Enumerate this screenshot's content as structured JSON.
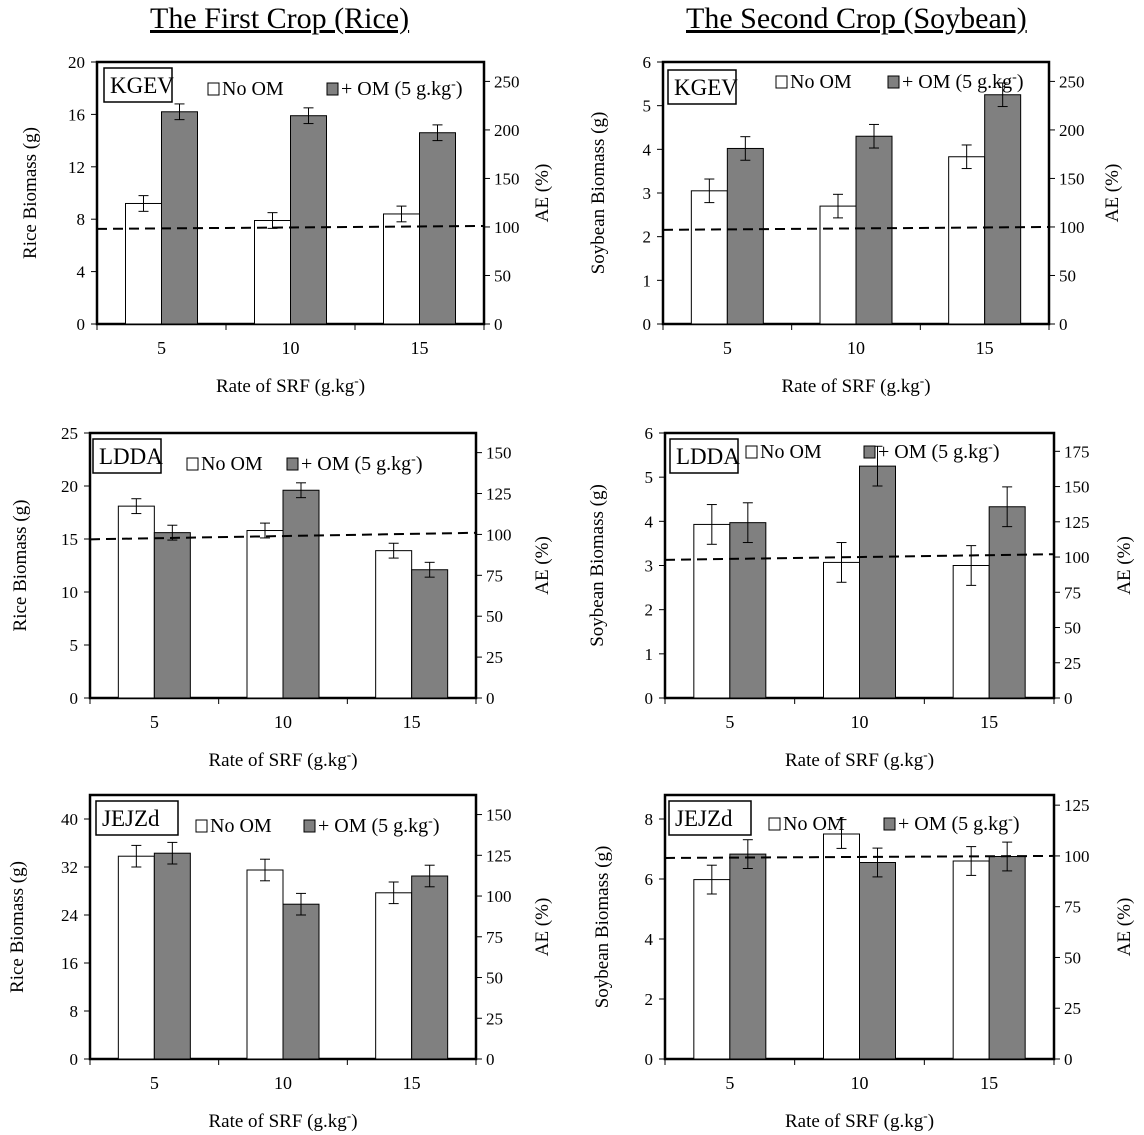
{
  "column_titles": {
    "left": "The First Crop (Rice)",
    "right": "The Second Crop (Soybean)"
  },
  "colors": {
    "no_om": "#ffffff",
    "plus_om": "#808080",
    "axis": "#000000"
  },
  "chart_data": [
    {
      "type": "bar",
      "panel": "KGEV",
      "crop": "Rice",
      "categories": [
        "5",
        "10",
        "15"
      ],
      "xlabel": "Rate of SRF (g.kg-)",
      "ylabel": "Rice Biomass (g)",
      "y2label": "AE (%)",
      "ylim": [
        0,
        20
      ],
      "yticks": [
        0,
        4,
        8,
        12,
        16,
        20
      ],
      "y2lim": [
        0,
        270
      ],
      "y2ticks": [
        0,
        50,
        100,
        150,
        200,
        250
      ],
      "legend_position": "top",
      "series": [
        {
          "name": "No OM",
          "values": [
            9.2,
            7.9,
            8.4
          ],
          "errors": [
            0.6,
            0.6,
            0.6
          ]
        },
        {
          "name": "+ OM (5 g.kg-)",
          "values": [
            16.2,
            15.9,
            14.6
          ],
          "errors": [
            0.6,
            0.6,
            0.6
          ]
        }
      ],
      "ae_line": {
        "style": "dashed",
        "start": 98,
        "end": 101
      }
    },
    {
      "type": "bar",
      "panel": "KGEV",
      "crop": "Soybean",
      "categories": [
        "5",
        "10",
        "15"
      ],
      "xlabel": "Rate of SRF (g.kg-)",
      "ylabel": "Soybean Biomass (g)",
      "y2label": "AE (%)",
      "ylim": [
        0,
        6
      ],
      "yticks": [
        0,
        1,
        2,
        3,
        4,
        5,
        6
      ],
      "y2lim": [
        0,
        270
      ],
      "y2ticks": [
        0,
        50,
        100,
        150,
        200,
        250
      ],
      "legend_position": "top",
      "series": [
        {
          "name": "No OM",
          "values": [
            3.05,
            2.7,
            3.83
          ],
          "errors": [
            0.27,
            0.27,
            0.27
          ]
        },
        {
          "name": "+ OM (5 g.kg-)",
          "values": [
            4.02,
            4.3,
            5.25
          ],
          "errors": [
            0.27,
            0.27,
            0.27
          ]
        }
      ],
      "ae_line": {
        "style": "dashed",
        "start": 97,
        "end": 100
      }
    },
    {
      "type": "bar",
      "panel": "LDDA",
      "crop": "Rice",
      "categories": [
        "5",
        "10",
        "15"
      ],
      "xlabel": "Rate of SRF (g.kg-)",
      "ylabel": "Rice Biomass (g)",
      "y2label": "AE (%)",
      "ylim": [
        0,
        25
      ],
      "yticks": [
        0,
        5,
        10,
        15,
        20,
        25
      ],
      "y2lim": [
        0,
        162
      ],
      "y2ticks": [
        0,
        25,
        50,
        75,
        100,
        125,
        150
      ],
      "legend_position": "top",
      "series": [
        {
          "name": "No OM",
          "values": [
            18.1,
            15.8,
            13.9
          ],
          "errors": [
            0.7,
            0.7,
            0.7
          ]
        },
        {
          "name": "+ OM (5 g.kg-)",
          "values": [
            15.6,
            19.6,
            12.1
          ],
          "errors": [
            0.7,
            0.7,
            0.7
          ]
        }
      ],
      "ae_line": {
        "style": "dashed",
        "start": 97,
        "end": 101
      }
    },
    {
      "type": "bar",
      "panel": "LDDA",
      "crop": "Soybean",
      "categories": [
        "5",
        "10",
        "15"
      ],
      "xlabel": "Rate of SRF (g.kg-)",
      "ylabel": "Soybean Biomass (g)",
      "y2label": "AE (%)",
      "ylim": [
        0,
        6
      ],
      "yticks": [
        0,
        1,
        2,
        3,
        4,
        5,
        6
      ],
      "y2lim": [
        0,
        188
      ],
      "y2ticks": [
        0,
        25,
        50,
        75,
        100,
        125,
        150,
        175
      ],
      "legend_position": "top",
      "series": [
        {
          "name": "No OM",
          "values": [
            3.93,
            3.07,
            3.0
          ],
          "errors": [
            0.45,
            0.45,
            0.45
          ]
        },
        {
          "name": "+ OM (5 g.kg-)",
          "values": [
            3.97,
            5.25,
            4.33
          ],
          "errors": [
            0.45,
            0.45,
            0.45
          ]
        }
      ],
      "ae_line": {
        "style": "dashed",
        "start": 98,
        "end": 102
      }
    },
    {
      "type": "bar",
      "panel": "JEJZd",
      "crop": "Rice",
      "categories": [
        "5",
        "10",
        "15"
      ],
      "xlabel": "Rate of SRF (g.kg-)",
      "ylabel": "Rice Biomass (g)",
      "y2label": "AE (%)",
      "ylim": [
        0,
        44
      ],
      "yticks": [
        0,
        8,
        16,
        24,
        32,
        40
      ],
      "y2lim": [
        0,
        162
      ],
      "y2ticks": [
        0,
        25,
        50,
        75,
        100,
        125,
        150
      ],
      "legend_position": "top",
      "series": [
        {
          "name": "No OM",
          "values": [
            33.8,
            31.5,
            27.7
          ],
          "errors": [
            1.8,
            1.8,
            1.8
          ]
        },
        {
          "name": "+ OM (5 g.kg-)",
          "values": [
            34.3,
            25.8,
            30.5
          ],
          "errors": [
            1.8,
            1.8,
            1.8
          ]
        }
      ],
      "ae_line": {
        "style": "none"
      }
    },
    {
      "type": "bar",
      "panel": "JEJZd",
      "crop": "Soybean",
      "categories": [
        "5",
        "10",
        "15"
      ],
      "xlabel": "Rate of SRF (g.kg-)",
      "ylabel": "Soybean Biomass (g)",
      "y2label": "AE (%)",
      "ylim": [
        0,
        8.8
      ],
      "yticks": [
        0,
        2,
        4,
        6,
        8
      ],
      "y2lim": [
        0,
        130
      ],
      "y2ticks": [
        0,
        25,
        50,
        75,
        100,
        125
      ],
      "legend_position": "top",
      "series": [
        {
          "name": "No OM",
          "values": [
            5.98,
            7.5,
            6.6
          ],
          "errors": [
            0.48,
            0.48,
            0.48
          ]
        },
        {
          "name": "+ OM (5 g.kg-)",
          "values": [
            6.83,
            6.55,
            6.75
          ],
          "errors": [
            0.48,
            0.48,
            0.48
          ]
        }
      ],
      "ae_line": {
        "style": "dashed",
        "start": 99,
        "end": 100
      }
    }
  ]
}
